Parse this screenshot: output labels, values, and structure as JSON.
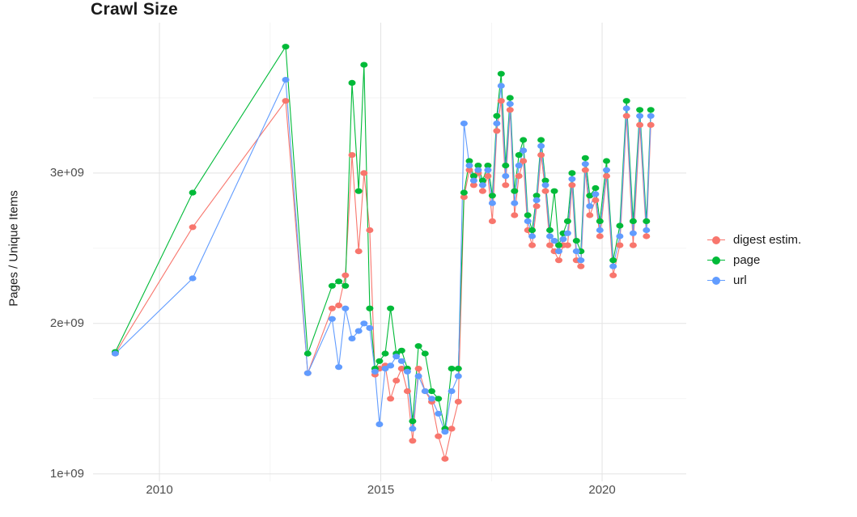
{
  "chart_data": {
    "type": "scatter",
    "title": "Crawl Size",
    "xlabel": "",
    "ylabel": "Pages / Unique Items",
    "value_unit": "billions of pages (1e9)",
    "grid": true,
    "legend_position": "right",
    "x_domain": [
      2008.5,
      2021.9
    ],
    "y_domain": [
      0.95,
      4.0
    ],
    "x_ticks": [
      {
        "value": 2010,
        "label": "2010"
      },
      {
        "value": 2015,
        "label": "2015"
      },
      {
        "value": 2020,
        "label": "2020"
      }
    ],
    "y_ticks": [
      {
        "value": 1,
        "label": "1e+09"
      },
      {
        "value": 2,
        "label": "2e+09"
      },
      {
        "value": 3,
        "label": "3e+09"
      }
    ],
    "x_minor": [
      2012.5,
      2017.5
    ],
    "y_minor": [
      1.5,
      2.5,
      3.5
    ],
    "x_years": [
      2009.0,
      2010.75,
      2012.85,
      2013.35,
      2013.9,
      2014.05,
      2014.2,
      2014.35,
      2014.5,
      2014.62,
      2014.75,
      2014.87,
      2014.97,
      2015.1,
      2015.22,
      2015.35,
      2015.47,
      2015.6,
      2015.72,
      2015.85,
      2016.0,
      2016.15,
      2016.3,
      2016.45,
      2016.6,
      2016.75,
      2016.88,
      2017.0,
      2017.1,
      2017.2,
      2017.3,
      2017.42,
      2017.52,
      2017.62,
      2017.72,
      2017.82,
      2017.92,
      2018.02,
      2018.12,
      2018.22,
      2018.32,
      2018.42,
      2018.52,
      2018.62,
      2018.72,
      2018.82,
      2018.92,
      2019.02,
      2019.12,
      2019.22,
      2019.32,
      2019.42,
      2019.52,
      2019.62,
      2019.72,
      2019.85,
      2019.95,
      2020.1,
      2020.25,
      2020.4,
      2020.55,
      2020.7,
      2020.85,
      2021.0,
      2021.1
    ],
    "series": [
      {
        "name": "digest estim.",
        "color": "#F8766D",
        "values_billions": [
          1.8,
          2.64,
          3.48,
          1.67,
          2.1,
          2.12,
          2.32,
          3.12,
          2.48,
          3.0,
          2.62,
          1.66,
          1.7,
          1.72,
          1.5,
          1.62,
          1.7,
          1.55,
          1.22,
          1.7,
          1.55,
          1.48,
          1.25,
          1.1,
          1.3,
          1.48,
          2.84,
          3.02,
          2.92,
          3.0,
          2.88,
          2.98,
          2.68,
          3.28,
          3.48,
          2.92,
          3.42,
          2.72,
          2.98,
          3.08,
          2.62,
          2.52,
          2.78,
          3.12,
          2.88,
          2.52,
          2.48,
          2.42,
          2.52,
          2.52,
          2.92,
          2.42,
          2.38,
          3.02,
          2.72,
          2.82,
          2.58,
          2.98,
          2.32,
          2.52,
          3.38,
          2.52,
          3.32,
          2.58,
          3.32
        ]
      },
      {
        "name": "page",
        "color": "#00BA38",
        "values_billions": [
          1.81,
          2.87,
          3.84,
          1.8,
          2.25,
          2.28,
          2.25,
          3.6,
          2.88,
          3.72,
          2.1,
          1.7,
          1.75,
          1.8,
          2.1,
          1.8,
          1.82,
          1.7,
          1.35,
          1.85,
          1.8,
          1.55,
          1.5,
          1.3,
          1.7,
          1.7,
          2.87,
          3.08,
          2.98,
          3.05,
          2.95,
          3.05,
          2.85,
          3.38,
          3.66,
          3.05,
          3.5,
          2.88,
          3.12,
          3.22,
          2.72,
          2.62,
          2.85,
          3.22,
          2.95,
          2.62,
          2.88,
          2.52,
          2.6,
          2.68,
          3.0,
          2.55,
          2.48,
          3.1,
          2.85,
          2.9,
          2.68,
          3.08,
          2.42,
          2.65,
          3.48,
          2.68,
          3.42,
          2.68,
          3.42
        ]
      },
      {
        "name": "url",
        "color": "#619CFF",
        "values_billions": [
          1.8,
          2.3,
          3.62,
          1.67,
          2.03,
          1.71,
          2.1,
          1.9,
          1.95,
          2.0,
          1.97,
          1.68,
          1.33,
          1.7,
          1.72,
          1.78,
          1.75,
          1.68,
          1.3,
          1.65,
          1.55,
          1.5,
          1.4,
          1.28,
          1.55,
          1.65,
          3.33,
          3.05,
          2.95,
          3.02,
          2.92,
          3.02,
          2.8,
          3.33,
          3.58,
          2.98,
          3.46,
          2.8,
          3.05,
          3.15,
          2.68,
          2.58,
          2.82,
          3.18,
          2.92,
          2.58,
          2.55,
          2.48,
          2.56,
          2.6,
          2.96,
          2.48,
          2.42,
          3.06,
          2.78,
          2.86,
          2.62,
          3.02,
          2.38,
          2.58,
          3.43,
          2.6,
          3.38,
          2.62,
          3.38
        ]
      }
    ]
  },
  "colors": {
    "background": "#FFFFFF",
    "grid_major": "#E3E3E3",
    "grid_minor": "#F1F1F1",
    "axis_text": "#4D4D4D",
    "title_text": "#1A1A1A"
  }
}
